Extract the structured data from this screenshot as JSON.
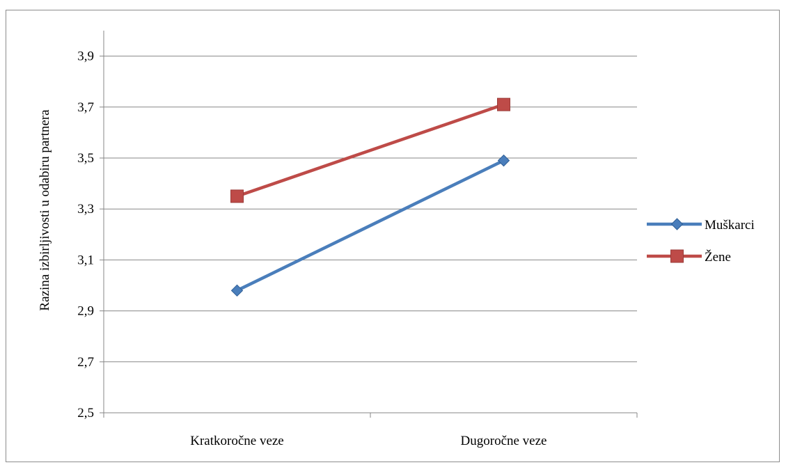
{
  "chart_data": {
    "type": "line",
    "title": "",
    "xlabel": "",
    "ylabel": "Razina izbirljivosti u odabiru partnera",
    "categories": [
      "Kratkoročne veze",
      "Dugoročne veze"
    ],
    "ylim": [
      2.5,
      4.0
    ],
    "yticks": [
      "2,5",
      "2,7",
      "2,9",
      "3,1",
      "3,3",
      "3,5",
      "3,7",
      "3,9"
    ],
    "ytick_values": [
      2.5,
      2.7,
      2.9,
      3.1,
      3.3,
      3.5,
      3.7,
      3.9
    ],
    "grid": true,
    "legend_position": "right",
    "series": [
      {
        "name": "Muškarci",
        "values": [
          2.98,
          3.49
        ],
        "color": "#4a7ebb",
        "marker": "diamond"
      },
      {
        "name": "Žene",
        "values": [
          3.35,
          3.71
        ],
        "color": "#be4b48",
        "marker": "square"
      }
    ]
  }
}
